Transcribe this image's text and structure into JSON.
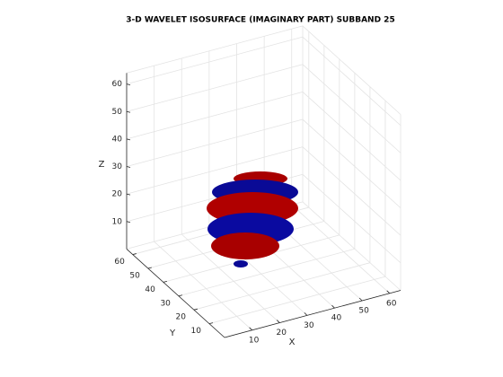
{
  "chart_data": {
    "type": "isosurface3d",
    "title": "3-D WAVELET ISOSURFACE (IMAGINARY PART) SUBBAND 25",
    "xlabel": "X",
    "ylabel": "Y",
    "zlabel": "Z",
    "xlim": [
      0,
      64
    ],
    "ylim": [
      0,
      64
    ],
    "zlim": [
      0,
      64
    ],
    "xticks": [
      10,
      20,
      30,
      40,
      50,
      60
    ],
    "yticks": [
      10,
      20,
      30,
      40,
      50,
      60
    ],
    "zticks": [
      10,
      20,
      30,
      40,
      50,
      60
    ],
    "grid": true
  }
}
